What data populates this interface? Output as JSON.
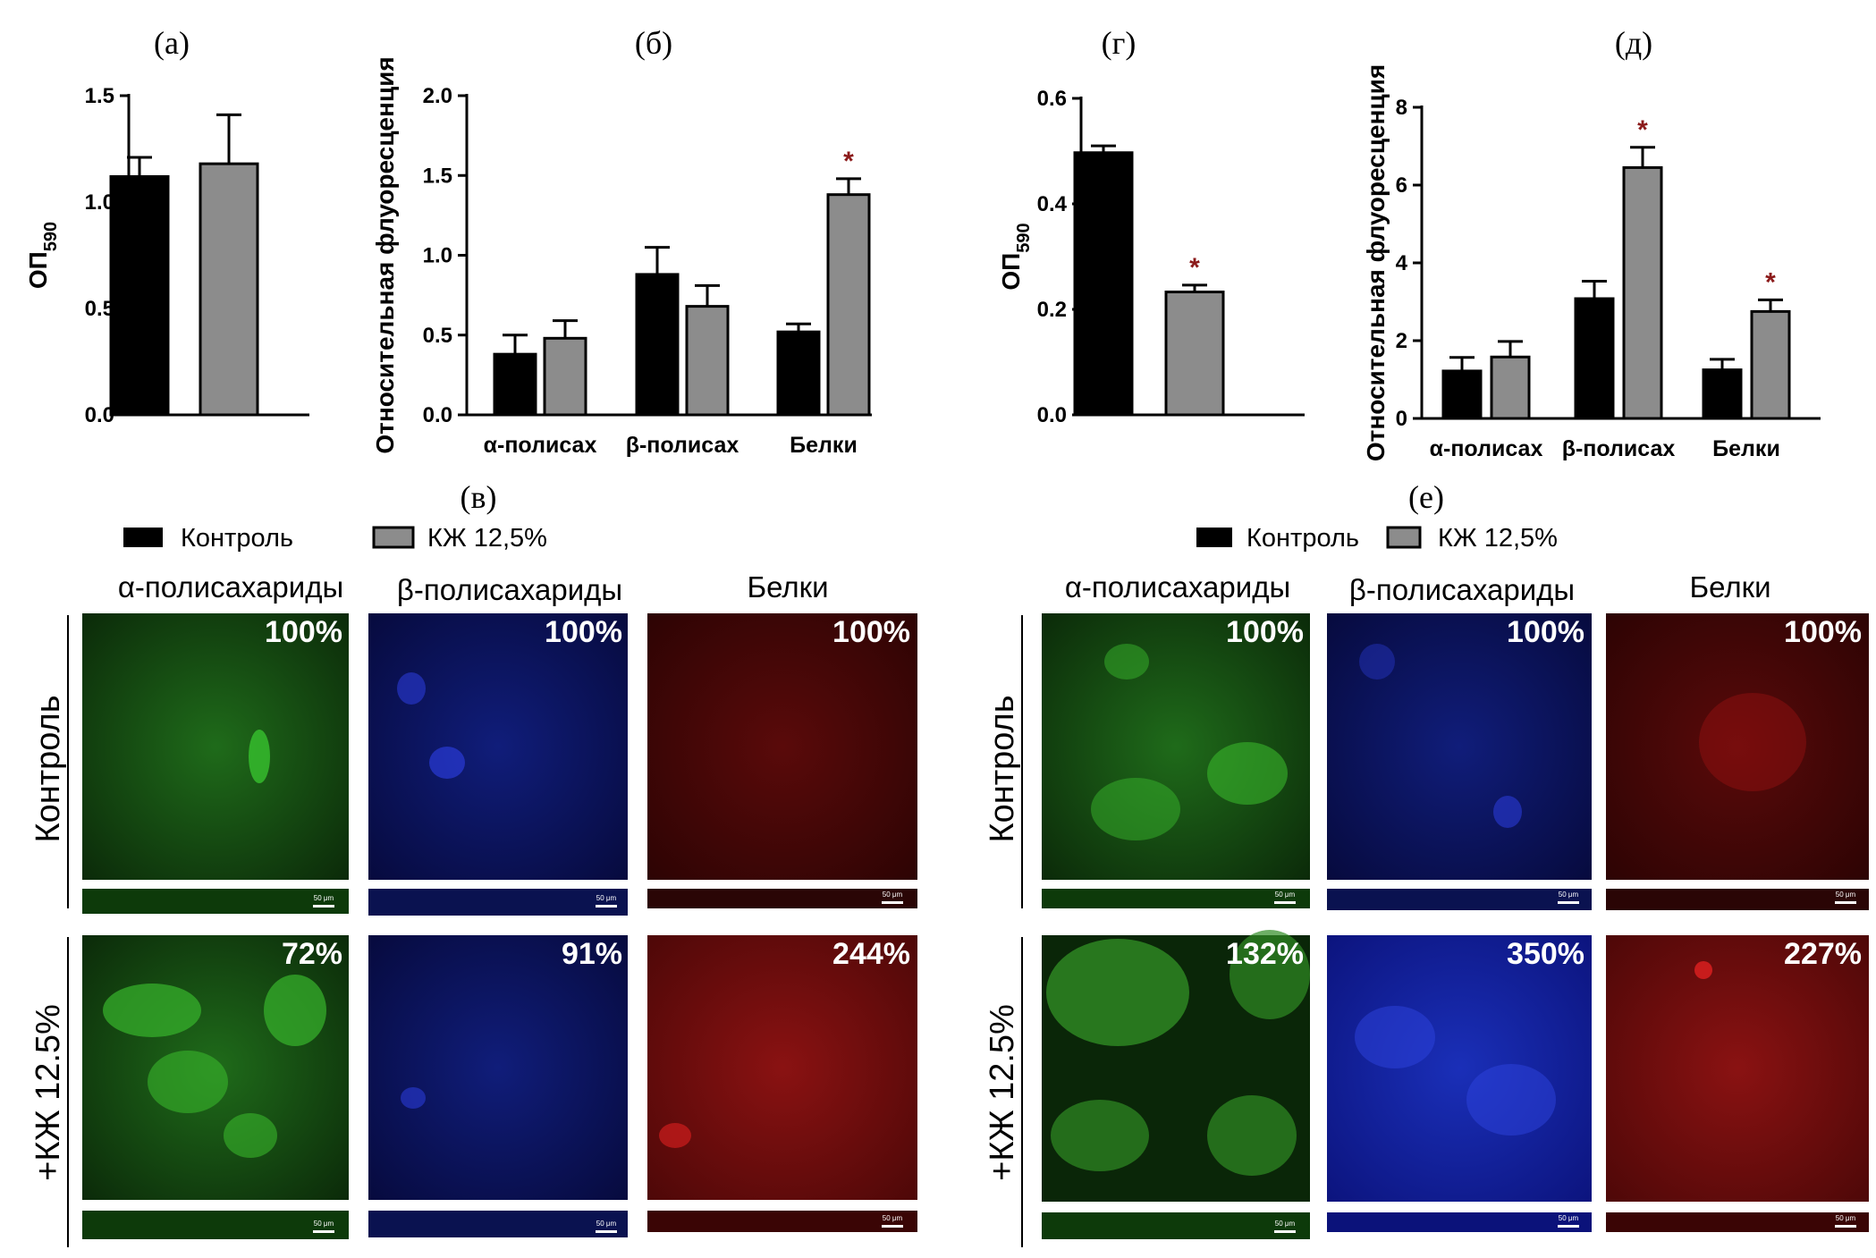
{
  "panel_labels": {
    "a": "(а)",
    "b": "(б)",
    "v": "(в)",
    "g": "(г)",
    "d": "(д)",
    "e": "(е)"
  },
  "colors": {
    "control": "#000000",
    "treatment": "#8c8c8c",
    "star": "#8b1a1a"
  },
  "legend": {
    "control": "Контроль",
    "treatment": "КЖ 12,5%"
  },
  "chart_data": [
    {
      "id": "a",
      "type": "bar",
      "ylabel": "ОП590",
      "ylim": [
        0,
        1.5
      ],
      "yticks": [
        "0.0",
        "0.5",
        "1.0",
        "1.5"
      ],
      "categories": [
        ""
      ],
      "series": [
        {
          "name": "Контроль",
          "values": [
            1.12
          ],
          "errors": [
            0.09
          ]
        },
        {
          "name": "КЖ 12,5%",
          "values": [
            1.18
          ],
          "errors": [
            0.23
          ]
        }
      ],
      "significance": [
        [
          false,
          false
        ]
      ]
    },
    {
      "id": "b",
      "type": "bar",
      "ylabel": "Относительная флуоресценция",
      "ylim": [
        0,
        2.0
      ],
      "yticks": [
        "0.0",
        "0.5",
        "1.0",
        "1.5",
        "2.0"
      ],
      "categories": [
        "α-полисах",
        "β-полисах",
        "Белки"
      ],
      "series": [
        {
          "name": "Контроль",
          "values": [
            0.38,
            0.88,
            0.52
          ],
          "errors": [
            0.12,
            0.17,
            0.05
          ]
        },
        {
          "name": "КЖ 12,5%",
          "values": [
            0.48,
            0.68,
            1.38
          ],
          "errors": [
            0.11,
            0.13,
            0.1
          ]
        }
      ],
      "significance": [
        [
          false,
          false
        ],
        [
          false,
          false
        ],
        [
          false,
          true
        ]
      ]
    },
    {
      "id": "g",
      "type": "bar",
      "ylabel": "ОП590",
      "ylim": [
        0,
        0.6
      ],
      "yticks": [
        "0.0",
        "0.2",
        "0.4",
        "0.6"
      ],
      "categories": [
        ""
      ],
      "series": [
        {
          "name": "Контроль",
          "values": [
            0.497
          ],
          "errors": [
            0.013
          ]
        },
        {
          "name": "КЖ 12,5%",
          "values": [
            0.233
          ],
          "errors": [
            0.013
          ]
        }
      ],
      "significance": [
        [
          false,
          true
        ]
      ]
    },
    {
      "id": "d",
      "type": "bar",
      "ylabel": "Относительная флуоресценция",
      "ylim": [
        0,
        8
      ],
      "yticks": [
        "0",
        "2",
        "4",
        "6",
        "8"
      ],
      "categories": [
        "α-полисах",
        "β-полисах",
        "Белки"
      ],
      "series": [
        {
          "name": "Контроль",
          "values": [
            1.22,
            3.08,
            1.25
          ],
          "errors": [
            0.35,
            0.45,
            0.27
          ]
        },
        {
          "name": "КЖ 12,5%",
          "values": [
            1.58,
            6.45,
            2.75
          ],
          "errors": [
            0.4,
            0.52,
            0.3
          ]
        }
      ],
      "significance": [
        [
          false,
          false
        ],
        [
          false,
          true
        ],
        [
          false,
          true
        ]
      ]
    }
  ],
  "microscopy": {
    "column_titles": [
      "α-полисахариды",
      "β-полисахариды",
      "Белки"
    ],
    "row_labels": [
      "Контроль",
      "+КЖ 12.5%"
    ],
    "scale_bar": "50 μm",
    "left": [
      [
        "100%",
        "100%",
        "100%"
      ],
      [
        "72%",
        "91%",
        "244%"
      ]
    ],
    "right": [
      [
        "100%",
        "100%",
        "100%"
      ],
      [
        "132%",
        "350%",
        "227%"
      ]
    ]
  }
}
